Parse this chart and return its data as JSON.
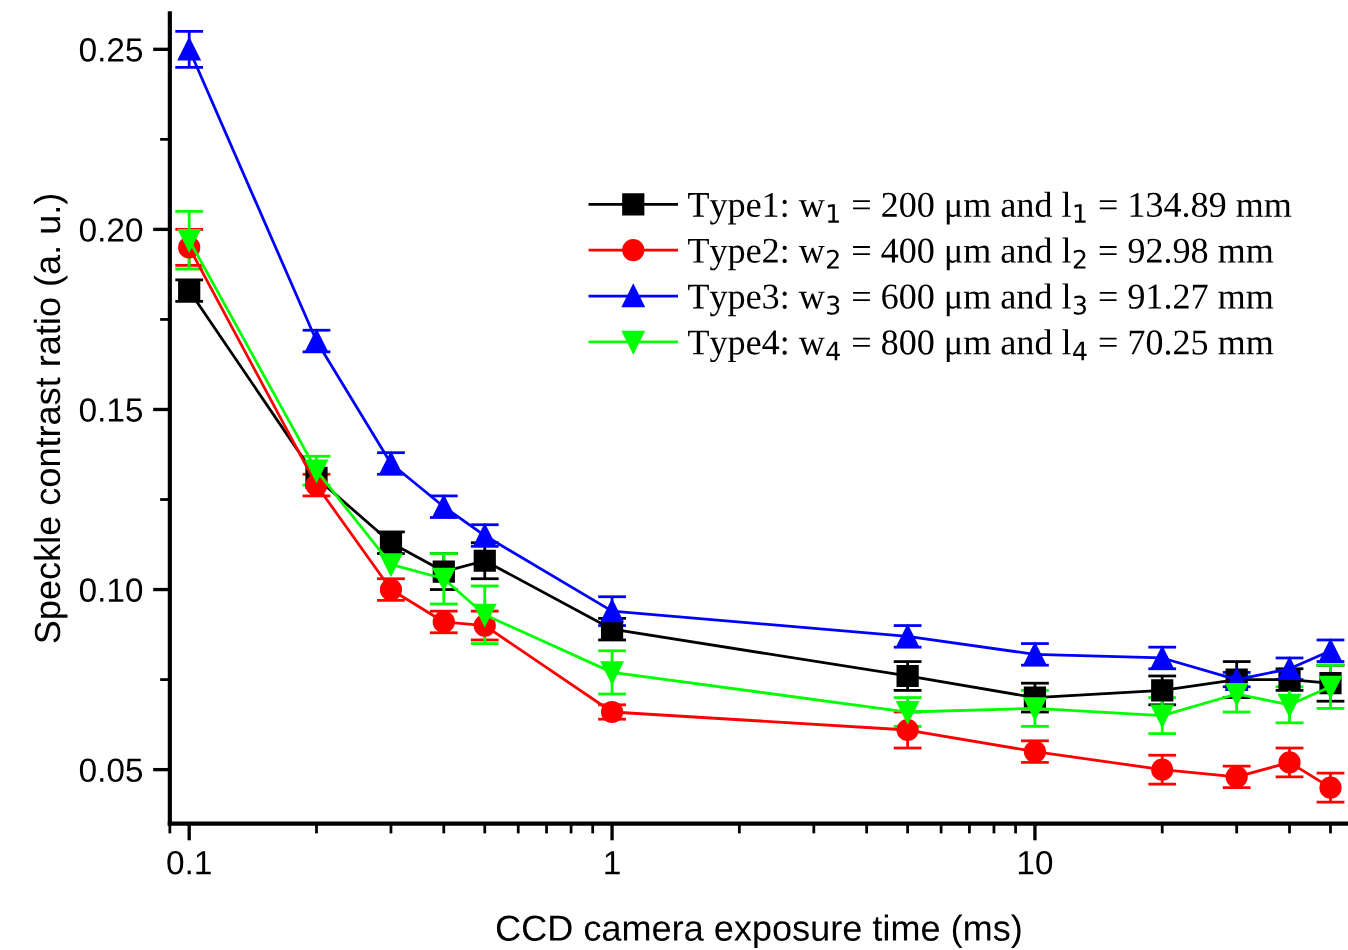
{
  "chart_data": {
    "type": "line",
    "xlabel": "CCD camera exposure time (ms)",
    "ylabel": "Speckle contrast ratio (a. u.)",
    "log": "x",
    "xlim": [
      0.09,
      55
    ],
    "xticks": [
      {
        "value": 0.1,
        "label": "0.1"
      },
      1,
      10
    ],
    "ylim": [
      0.035,
      0.26
    ],
    "yticks": [
      {
        "value": 0.05,
        "label": "0.05"
      },
      {
        "value": 0.1,
        "label": "0.10"
      },
      {
        "value": 0.15,
        "label": "0.15"
      },
      {
        "value": 0.2,
        "label": "0.20"
      },
      {
        "value": 0.25,
        "label": "0.25"
      }
    ],
    "x": [
      0.1,
      0.2,
      0.3,
      0.4,
      0.5,
      1,
      5,
      10,
      20,
      30,
      40,
      50
    ],
    "legend": "top right",
    "grid": false,
    "line_style": "solid",
    "series": [
      {
        "name": "Type1: w$_{1}$ = 200 μm and l$_{1}$ = 134.89 mm",
        "color": "#000000",
        "marker": "square",
        "values": [
          0.183,
          0.131,
          0.113,
          0.105,
          0.108,
          0.089,
          0.076,
          0.07,
          0.072,
          0.075,
          0.075,
          0.074
        ],
        "errors": [
          0.003,
          null,
          0.003,
          0.005,
          0.005,
          0.003,
          0.004,
          0.004,
          0.004,
          0.005,
          0.003,
          0.005
        ]
      },
      {
        "name": "Type2: w$_{2}$ = 400 μm and l$_{2}$ = 92.98 mm",
        "color": "#ff0000",
        "marker": "circle",
        "values": [
          0.195,
          0.129,
          0.1,
          0.091,
          0.09,
          0.066,
          0.061,
          0.055,
          0.05,
          0.048,
          0.052,
          0.045
        ],
        "errors": [
          0.005,
          0.003,
          0.003,
          0.003,
          0.004,
          0.002,
          0.005,
          0.003,
          0.004,
          0.003,
          0.004,
          0.004
        ]
      },
      {
        "name": "Type3: w$_{3}$ = 600 μm and l$_{3}$ = 91.27 mm",
        "color": "#0000ff",
        "marker": "triangle",
        "values": [
          0.25,
          0.169,
          0.135,
          0.123,
          0.115,
          0.094,
          0.087,
          0.082,
          0.081,
          0.075,
          0.078,
          0.083
        ],
        "errors": [
          0.005,
          0.003,
          0.003,
          0.003,
          0.003,
          0.004,
          0.003,
          0.003,
          0.003,
          0.002,
          0.003,
          0.003
        ]
      },
      {
        "name": "Type4: w$_{4}$ = 800 μm and l$_{4}$ = 70.25 mm",
        "color": "#00ff00",
        "marker": "triangle_down",
        "values": [
          0.197,
          0.133,
          0.107,
          0.103,
          0.093,
          0.077,
          0.066,
          0.067,
          0.065,
          0.071,
          0.068,
          0.073
        ],
        "errors": [
          0.008,
          0.004,
          null,
          0.007,
          0.008,
          0.006,
          0.004,
          0.005,
          0.005,
          0.005,
          0.005,
          0.006
        ]
      }
    ]
  }
}
